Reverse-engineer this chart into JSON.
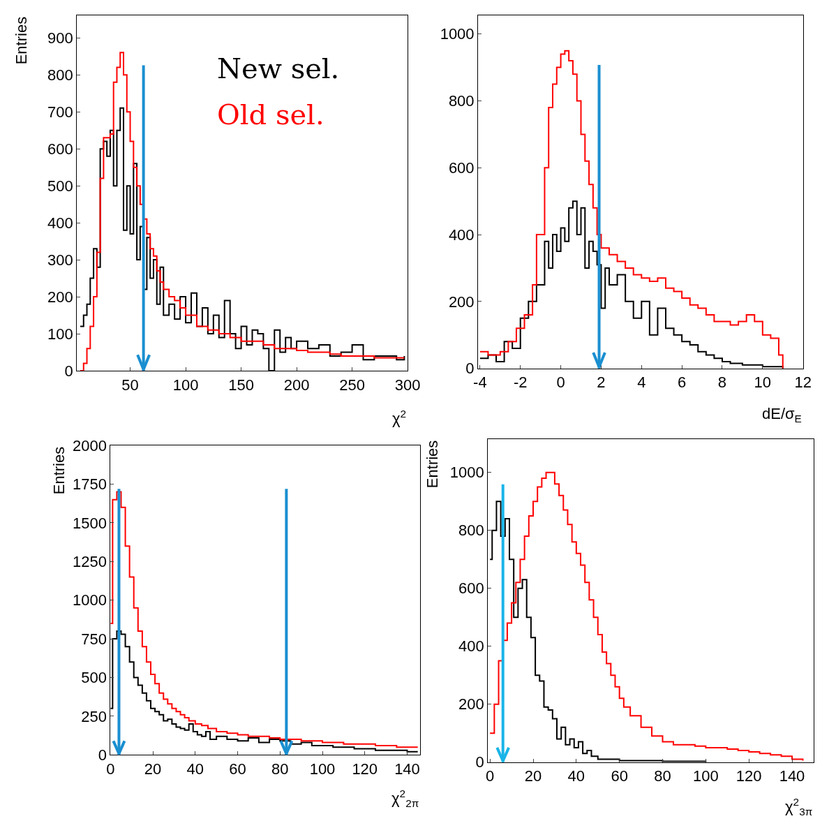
{
  "chart_data": [
    {
      "type": "step",
      "ylabel": "Entries",
      "xlabel": "χ$^{2}$",
      "xlim": [
        2,
        300
      ],
      "ylim": [
        0,
        960
      ],
      "xticks": [
        50,
        100,
        150,
        200,
        250,
        300
      ],
      "yticks": [
        0,
        100,
        200,
        300,
        400,
        500,
        600,
        700,
        800,
        900
      ],
      "ref_lines": [
        {
          "axis": "x",
          "value": 62,
          "color": "#1a8fd0"
        }
      ],
      "series": [
        {
          "name": "New sel.",
          "color": "#000000",
          "x": [
            5,
            8,
            11,
            14,
            17,
            20,
            23,
            26,
            29,
            32,
            35,
            38,
            41,
            44,
            47,
            50,
            53,
            56,
            59,
            62,
            65,
            68,
            71,
            74,
            77,
            80,
            85,
            90,
            95,
            100,
            105,
            110,
            115,
            120,
            125,
            130,
            135,
            140,
            145,
            150,
            155,
            160,
            165,
            170,
            175,
            180,
            185,
            190,
            195,
            200,
            210,
            220,
            230,
            240,
            250,
            260,
            270,
            280,
            290,
            297
          ],
          "values": [
            120,
            150,
            180,
            250,
            330,
            280,
            600,
            620,
            580,
            650,
            500,
            650,
            710,
            380,
            500,
            370,
            560,
            300,
            390,
            220,
            360,
            250,
            300,
            180,
            280,
            150,
            180,
            140,
            200,
            130,
            210,
            120,
            170,
            100,
            150,
            90,
            190,
            100,
            60,
            120,
            70,
            110,
            100,
            60,
            0,
            110,
            50,
            90,
            60,
            80,
            60,
            70,
            40,
            50,
            70,
            30,
            40,
            40,
            30,
            40
          ]
        },
        {
          "name": "Old sel.",
          "color": "#ff0000",
          "x": [
            5,
            8,
            11,
            14,
            17,
            20,
            23,
            26,
            29,
            32,
            35,
            38,
            41,
            44,
            47,
            50,
            53,
            56,
            59,
            62,
            65,
            68,
            71,
            74,
            77,
            80,
            85,
            90,
            95,
            100,
            110,
            120,
            130,
            140,
            150,
            160,
            170,
            180,
            190,
            200,
            210,
            220,
            230,
            240,
            250,
            260,
            270,
            280,
            290,
            297
          ],
          "values": [
            0,
            20,
            60,
            120,
            200,
            320,
            520,
            630,
            630,
            640,
            780,
            820,
            860,
            800,
            700,
            620,
            550,
            500,
            450,
            410,
            370,
            330,
            310,
            270,
            240,
            220,
            200,
            190,
            170,
            150,
            120,
            110,
            100,
            90,
            80,
            80,
            70,
            60,
            60,
            55,
            50,
            50,
            45,
            40,
            40,
            40,
            35,
            35,
            35,
            35
          ]
        }
      ]
    },
    {
      "type": "step",
      "xlabel": "dE/σ$_{E}$",
      "xlim": [
        -4.1,
        12
      ],
      "ylim": [
        0,
        1055
      ],
      "xticks": [
        -4,
        -2,
        0,
        2,
        4,
        6,
        8,
        10,
        12
      ],
      "yticks": [
        0,
        200,
        400,
        600,
        800,
        1000
      ],
      "ref_lines": [
        {
          "axis": "x",
          "value": 1.9,
          "color": "#1a8fd0"
        }
      ],
      "series": [
        {
          "color": "#000000",
          "x": [
            -4,
            -3.6,
            -3.2,
            -2.8,
            -2.4,
            -2,
            -1.6,
            -1.2,
            -0.8,
            -0.6,
            -0.4,
            -0.2,
            0,
            0.2,
            0.4,
            0.6,
            0.8,
            1,
            1.2,
            1.4,
            1.6,
            1.8,
            2,
            2.2,
            2.4,
            2.8,
            3.2,
            3.6,
            4,
            4.4,
            4.8,
            5.2,
            5.6,
            6,
            6.4,
            6.8,
            7.2,
            7.6,
            8,
            8.4,
            9,
            10,
            11
          ],
          "values": [
            30,
            40,
            20,
            80,
            60,
            150,
            200,
            250,
            380,
            300,
            400,
            350,
            420,
            380,
            480,
            500,
            400,
            480,
            300,
            380,
            350,
            310,
            180,
            300,
            250,
            280,
            200,
            150,
            200,
            100,
            180,
            120,
            100,
            80,
            70,
            50,
            40,
            30,
            20,
            15,
            10,
            5,
            0
          ]
        },
        {
          "color": "#ff0000",
          "x": [
            -4,
            -3.6,
            -3,
            -2.6,
            -2.2,
            -1.8,
            -1.4,
            -1.2,
            -0.8,
            -0.6,
            -0.4,
            -0.2,
            0,
            0.2,
            0.4,
            0.6,
            0.8,
            1,
            1.2,
            1.4,
            1.6,
            1.8,
            2,
            2.4,
            2.8,
            3.2,
            3.6,
            4,
            4.4,
            4.8,
            5.2,
            5.6,
            6,
            6.4,
            6.8,
            7.2,
            7.6,
            8,
            8.4,
            8.8,
            9.2,
            9.6,
            10,
            10.4,
            10.8,
            11
          ],
          "values": [
            50,
            40,
            50,
            80,
            120,
            160,
            250,
            400,
            600,
            780,
            850,
            900,
            940,
            950,
            920,
            880,
            800,
            700,
            620,
            550,
            480,
            400,
            360,
            340,
            320,
            300,
            280,
            270,
            260,
            270,
            240,
            230,
            210,
            190,
            180,
            160,
            140,
            140,
            130,
            140,
            160,
            140,
            100,
            90,
            40,
            0
          ]
        }
      ]
    },
    {
      "type": "step",
      "ylabel": "Entries",
      "xlabel": "χ$^{2}$$_{2π}$",
      "xlim": [
        0,
        146
      ],
      "ylim": [
        0,
        2000
      ],
      "xticks": [
        0,
        20,
        40,
        60,
        80,
        100,
        120,
        140
      ],
      "yticks": [
        0,
        250,
        500,
        750,
        1000,
        1250,
        1500,
        1750,
        2000
      ],
      "ref_lines": [
        {
          "axis": "x",
          "value": 4,
          "color": "#1a8fd0"
        },
        {
          "axis": "x",
          "value": 83,
          "color": "#1a8fd0"
        }
      ],
      "series": [
        {
          "color": "#000000",
          "x": [
            0,
            1,
            3,
            5,
            7,
            9,
            11,
            13,
            15,
            17,
            19,
            21,
            23,
            25,
            27,
            29,
            31,
            33,
            35,
            37,
            39,
            41,
            43,
            45,
            47,
            50,
            55,
            60,
            65,
            70,
            75,
            80,
            85,
            90,
            95,
            100,
            105,
            110,
            115,
            120,
            125,
            130,
            135,
            140,
            145
          ],
          "values": [
            300,
            750,
            800,
            780,
            700,
            600,
            500,
            450,
            400,
            350,
            300,
            280,
            260,
            220,
            230,
            200,
            180,
            170,
            160,
            200,
            150,
            130,
            120,
            150,
            100,
            120,
            100,
            90,
            110,
            80,
            100,
            90,
            70,
            80,
            60,
            60,
            50,
            50,
            40,
            40,
            30,
            30,
            30,
            20,
            20
          ]
        },
        {
          "color": "#ff0000",
          "x": [
            0,
            1,
            3,
            5,
            7,
            9,
            11,
            13,
            15,
            17,
            19,
            21,
            23,
            25,
            27,
            29,
            31,
            33,
            35,
            37,
            40,
            43,
            46,
            50,
            55,
            60,
            65,
            70,
            75,
            80,
            85,
            90,
            95,
            100,
            105,
            110,
            115,
            120,
            125,
            130,
            135,
            140,
            145
          ],
          "values": [
            850,
            1650,
            1700,
            1600,
            1350,
            1150,
            950,
            800,
            700,
            600,
            520,
            460,
            400,
            360,
            330,
            300,
            280,
            260,
            240,
            220,
            200,
            190,
            170,
            150,
            140,
            130,
            120,
            120,
            110,
            100,
            100,
            90,
            90,
            80,
            80,
            70,
            70,
            70,
            60,
            60,
            50,
            50,
            50
          ]
        }
      ]
    },
    {
      "type": "step",
      "ylabel": "Entries",
      "xlabel": "χ$^{2}$$_{3π}$",
      "xlim": [
        -1,
        150
      ],
      "ylim": [
        0,
        1115
      ],
      "xticks": [
        0,
        20,
        40,
        60,
        80,
        100,
        120,
        140
      ],
      "yticks": [
        0,
        200,
        400,
        600,
        800,
        1000
      ],
      "ref_lines": [
        {
          "axis": "x",
          "value": 6,
          "color": "#19b4e8"
        }
      ],
      "series": [
        {
          "color": "#000000",
          "x": [
            0,
            1,
            3,
            5,
            7,
            9,
            11,
            13,
            15,
            17,
            19,
            21,
            23,
            25,
            27,
            29,
            31,
            33,
            35,
            37,
            39,
            41,
            43,
            45,
            47,
            50,
            55,
            60,
            70,
            80,
            100
          ],
          "values": [
            700,
            800,
            900,
            780,
            840,
            700,
            500,
            600,
            630,
            500,
            430,
            300,
            280,
            190,
            180,
            150,
            80,
            120,
            60,
            80,
            50,
            70,
            30,
            40,
            20,
            10,
            10,
            5,
            5,
            3,
            0
          ]
        },
        {
          "color": "#ff0000",
          "x": [
            0,
            2,
            4,
            6,
            8,
            10,
            12,
            14,
            16,
            18,
            20,
            22,
            24,
            26,
            28,
            30,
            32,
            34,
            36,
            38,
            40,
            42,
            44,
            46,
            48,
            50,
            52,
            54,
            56,
            58,
            60,
            62,
            65,
            70,
            75,
            80,
            85,
            90,
            95,
            100,
            105,
            110,
            115,
            120,
            125,
            130,
            135,
            140,
            145
          ],
          "values": [
            100,
            200,
            350,
            420,
            480,
            550,
            620,
            700,
            780,
            850,
            900,
            950,
            980,
            1000,
            1000,
            960,
            920,
            870,
            820,
            760,
            720,
            680,
            620,
            560,
            500,
            440,
            380,
            340,
            300,
            260,
            220,
            190,
            160,
            120,
            90,
            70,
            60,
            60,
            55,
            50,
            50,
            45,
            40,
            35,
            30,
            25,
            20,
            10,
            5
          ]
        }
      ]
    }
  ]
}
